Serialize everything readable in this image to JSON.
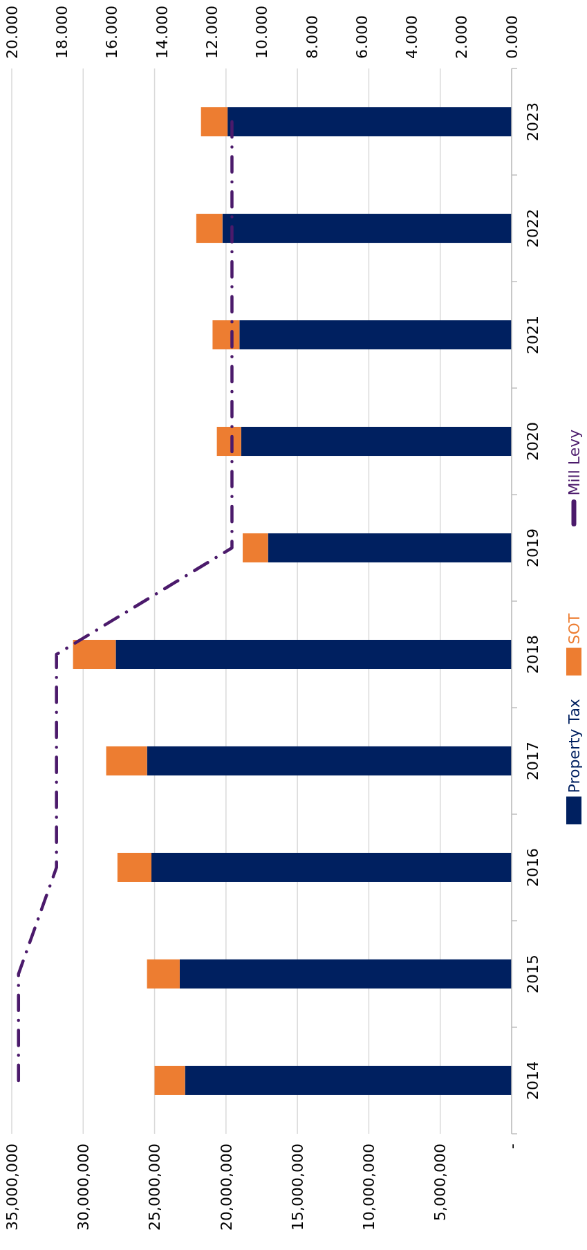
{
  "chart_data": {
    "type": "bar",
    "stacked": true,
    "orientation": "horizontal",
    "categories": [
      "2023",
      "2022",
      "2021",
      "2020",
      "2019",
      "2018",
      "2017",
      "2016",
      "2015",
      "2014"
    ],
    "series": [
      {
        "name": "Property Tax",
        "color": "#002060",
        "values": [
          19890000,
          20250000,
          19060000,
          18940000,
          17060000,
          27720000,
          25530000,
          25220000,
          23240000,
          22870000
        ]
      },
      {
        "name": "SOT",
        "color": "#ed7d31",
        "values": [
          1860000,
          1830000,
          1880000,
          1700000,
          1770000,
          2990000,
          2860000,
          2380000,
          2290000,
          2130000
        ]
      },
      {
        "name": "Mill Levy",
        "type": "line",
        "axis": "x2",
        "color": "#4b1a6b",
        "line_style": "dashed",
        "values": [
          11.19,
          11.19,
          11.19,
          11.19,
          11.19,
          18.21,
          18.21,
          18.21,
          19.73,
          19.73
        ]
      }
    ],
    "xlim": [
      35000000,
      0
    ],
    "xticks": [
      {
        "value": 35000000,
        "label": "35,000,000"
      },
      {
        "value": 30000000,
        "label": "30,000,000"
      },
      {
        "value": 25000000,
        "label": "25,000,000"
      },
      {
        "value": 20000000,
        "label": "20,000,000"
      },
      {
        "value": 15000000,
        "label": "15,000,000"
      },
      {
        "value": 10000000,
        "label": "10,000,000"
      },
      {
        "value": 5000000,
        "label": "5,000,000"
      },
      {
        "value": 0,
        "label": "-"
      }
    ],
    "x2lim": [
      20,
      0
    ],
    "x2ticks": [
      {
        "value": 20,
        "label": "20.000"
      },
      {
        "value": 18,
        "label": "18.000"
      },
      {
        "value": 16,
        "label": "16.000"
      },
      {
        "value": 14,
        "label": "14.000"
      },
      {
        "value": 12,
        "label": "12.000"
      },
      {
        "value": 10,
        "label": "10.000"
      },
      {
        "value": 8,
        "label": "8.000"
      },
      {
        "value": 6,
        "label": "6.000"
      },
      {
        "value": 4,
        "label": "4.000"
      },
      {
        "value": 2,
        "label": "2.000"
      },
      {
        "value": 0,
        "label": "0.000"
      }
    ],
    "grid": "x",
    "legend": "right"
  }
}
